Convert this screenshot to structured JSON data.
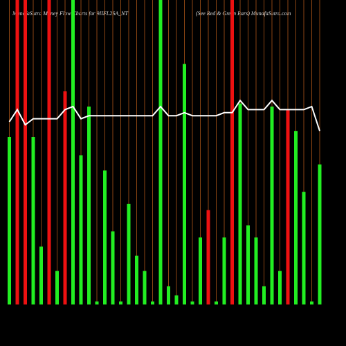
{
  "chart_data": {
    "type": "bar",
    "title": "MunafaSutra Money Flow Charts for 9IIFL2SA_NT",
    "subtitle": "(See Red & Green Bars) MunafaSutra.com",
    "ylim": [
      0,
      100
    ],
    "grid": true,
    "grid_color": "#8b4513",
    "series": [
      {
        "name": "Money Flow",
        "type": "bar",
        "colors": [
          "#22ee22",
          "#ee1111",
          "#ee1111",
          "#22ee22",
          "#22ee22",
          "#ee1111",
          "#22ee22",
          "#ee1111",
          "#22ee22",
          "#22ee22",
          "#22ee22",
          "#22ee22",
          "#22ee22",
          "#22ee22",
          "#22ee22",
          "#22ee22",
          "#22ee22",
          "#22ee22",
          "#22ee22",
          "#22ee22",
          "#22ee22",
          "#22ee22",
          "#22ee22",
          "#22ee22",
          "#22ee22",
          "#ee1111",
          "#22ee22",
          "#22ee22",
          "#ee1111",
          "#22ee22",
          "#22ee22",
          "#22ee22",
          "#22ee22",
          "#22ee22",
          "#22ee22",
          "#ee1111",
          "#22ee22",
          "#22ee22",
          "#22ee22",
          "#22ee22"
        ],
        "values": [
          55,
          100,
          100,
          55,
          19,
          100,
          11,
          70,
          100,
          49,
          65,
          1,
          44,
          24,
          1,
          33,
          16,
          11,
          1,
          100,
          6,
          3,
          79,
          1,
          22,
          31,
          1,
          22,
          100,
          66,
          26,
          22,
          6,
          65,
          11,
          64,
          57,
          37,
          1,
          46
        ]
      },
      {
        "name": "Trend",
        "type": "line",
        "color": "#ffffff",
        "values": [
          60,
          64,
          59,
          61,
          61,
          61,
          61,
          64,
          65,
          61,
          62,
          62,
          62,
          62,
          62,
          62,
          62,
          62,
          62,
          65,
          62,
          62,
          63,
          62,
          62,
          62,
          62,
          63,
          63,
          67,
          64,
          64,
          64,
          67,
          64,
          64,
          64,
          64,
          65,
          57
        ]
      }
    ]
  }
}
